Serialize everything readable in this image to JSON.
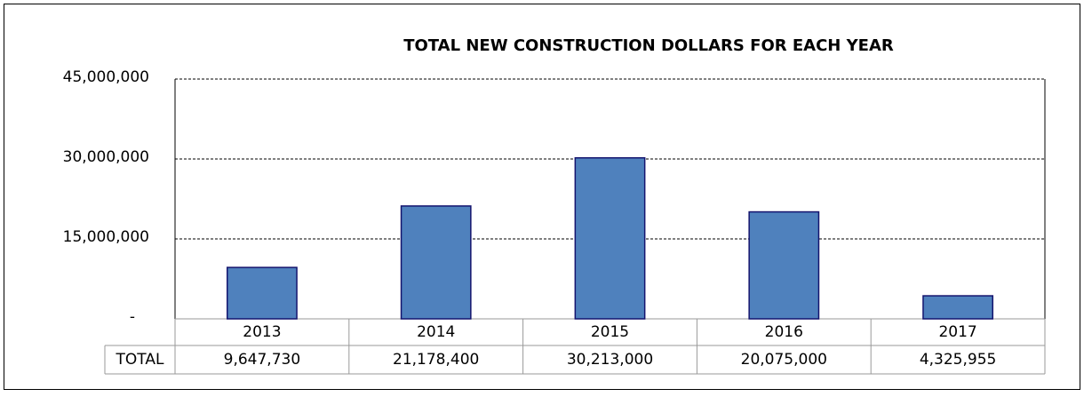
{
  "chart_data": {
    "type": "bar",
    "title": "TOTAL NEW CONSTRUCTION DOLLARS FOR EACH YEAR",
    "categories": [
      "2013",
      "2014",
      "2015",
      "2016",
      "2017"
    ],
    "series": [
      {
        "name": "TOTAL",
        "color": "#4f81bd",
        "values": [
          9647730,
          21178400,
          30213000,
          20075000,
          4325955
        ],
        "value_labels": [
          "9,647,730",
          "21,178,400",
          "30,213,000",
          "20,075,000",
          "4,325,955"
        ]
      }
    ],
    "ylim": [
      0,
      45000000
    ],
    "yticks": [
      {
        "value": 0,
        "label": "-"
      },
      {
        "value": 15000000,
        "label": "15,000,000"
      },
      {
        "value": 30000000,
        "label": "30,000,000"
      },
      {
        "value": 45000000,
        "label": "45,000,000"
      }
    ],
    "grid": true
  }
}
